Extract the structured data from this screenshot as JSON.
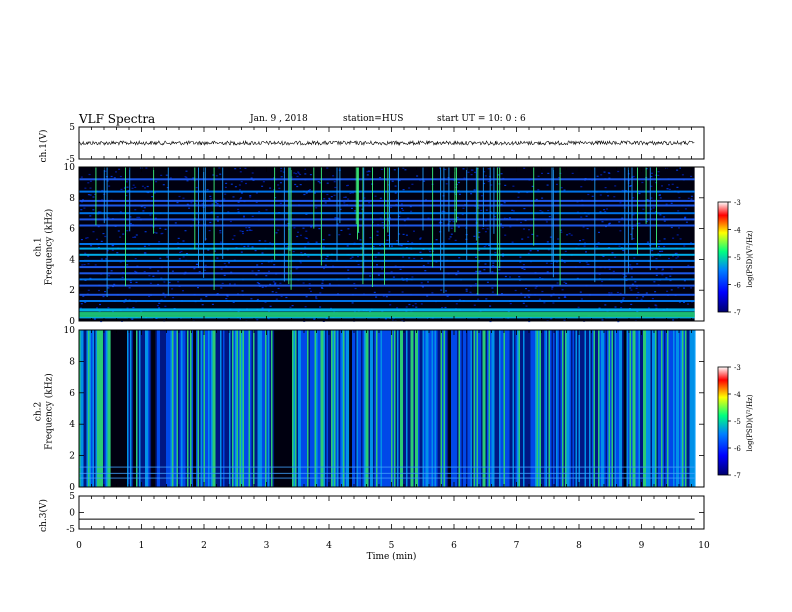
{
  "header": {
    "title": "VLF Spectra",
    "date": "Jan. 9 , 2018",
    "station": "station=HUS",
    "start_ut": "start UT =  10: 0 : 6"
  },
  "colors": {
    "spectrogram_background": "#000010",
    "colorbar_stops": [
      "#00006e",
      "#0000ff",
      "#0080ff",
      "#00ff80",
      "#ffff00",
      "#ff0000",
      "#ffffff"
    ]
  },
  "chart_data": [
    {
      "type": "line",
      "panel": "ch1-waveform",
      "ylabel": "ch.1(V)",
      "ylim": [
        -5,
        5
      ],
      "yticks": [
        "5",
        "-5"
      ],
      "series": [
        {
          "values_description_free": true,
          "x": [
            0,
            9.85
          ],
          "y": [
            0,
            0
          ]
        }
      ]
    },
    {
      "type": "heatmap",
      "panel": "ch1-spectrogram",
      "ylabel": "ch.1\nFrequency (kHz)",
      "ylim": [
        0,
        10
      ],
      "yticks": [
        "0",
        "2",
        "4",
        "6",
        "8",
        "10"
      ],
      "xlim": [
        0,
        10
      ],
      "data_xmax": 9.85,
      "horizontal_lines_khz": [
        0.3,
        0.5,
        0.75,
        1.3,
        1.7,
        2.3,
        2.7,
        3.1,
        3.5,
        3.9,
        4.3,
        4.7,
        5.0,
        6.2,
        6.6,
        7.0,
        7.5,
        7.8,
        8.4,
        9.2
      ],
      "colorbar": {
        "label": "log(PSD)(V²/Hz)",
        "min": -7,
        "max": -3,
        "ticks": [
          "-3",
          "-4",
          "-5",
          "-6",
          "-7"
        ]
      }
    },
    {
      "type": "heatmap",
      "panel": "ch2-spectrogram",
      "ylabel": "ch.2\nFrequency (kHz)",
      "ylim": [
        0,
        10
      ],
      "yticks": [
        "0",
        "2",
        "4",
        "6",
        "8",
        "10"
      ],
      "xlim": [
        0,
        10
      ],
      "data_xmax": 9.85,
      "dark_gaps_min": [
        [
          0.5,
          0.75
        ],
        [
          0.85,
          0.9
        ],
        [
          1.15,
          1.2
        ],
        [
          1.8,
          1.85
        ],
        [
          3.1,
          3.4
        ],
        [
          4.3,
          4.35
        ],
        [
          5.9,
          5.95
        ],
        [
          8.7,
          8.75
        ]
      ],
      "colorbar": {
        "label": "log(PSD)(V²/Hz)",
        "min": -7,
        "max": -3,
        "ticks": [
          "-3",
          "-4",
          "-5",
          "-6",
          "-7"
        ]
      }
    },
    {
      "type": "line",
      "panel": "ch3-waveform",
      "ylabel": "ch.3(V)",
      "ylim": [
        -5,
        5
      ],
      "yticks": [
        "5",
        "0",
        "-5"
      ],
      "xlabel": "Time (min)",
      "xlim": [
        0,
        10
      ],
      "xticks": [
        "0",
        "1",
        "2",
        "3",
        "4",
        "5",
        "6",
        "7",
        "8",
        "9",
        "10"
      ],
      "series": [
        {
          "x": [
            0,
            9.85
          ],
          "y": [
            -2,
            -2
          ]
        }
      ]
    }
  ]
}
